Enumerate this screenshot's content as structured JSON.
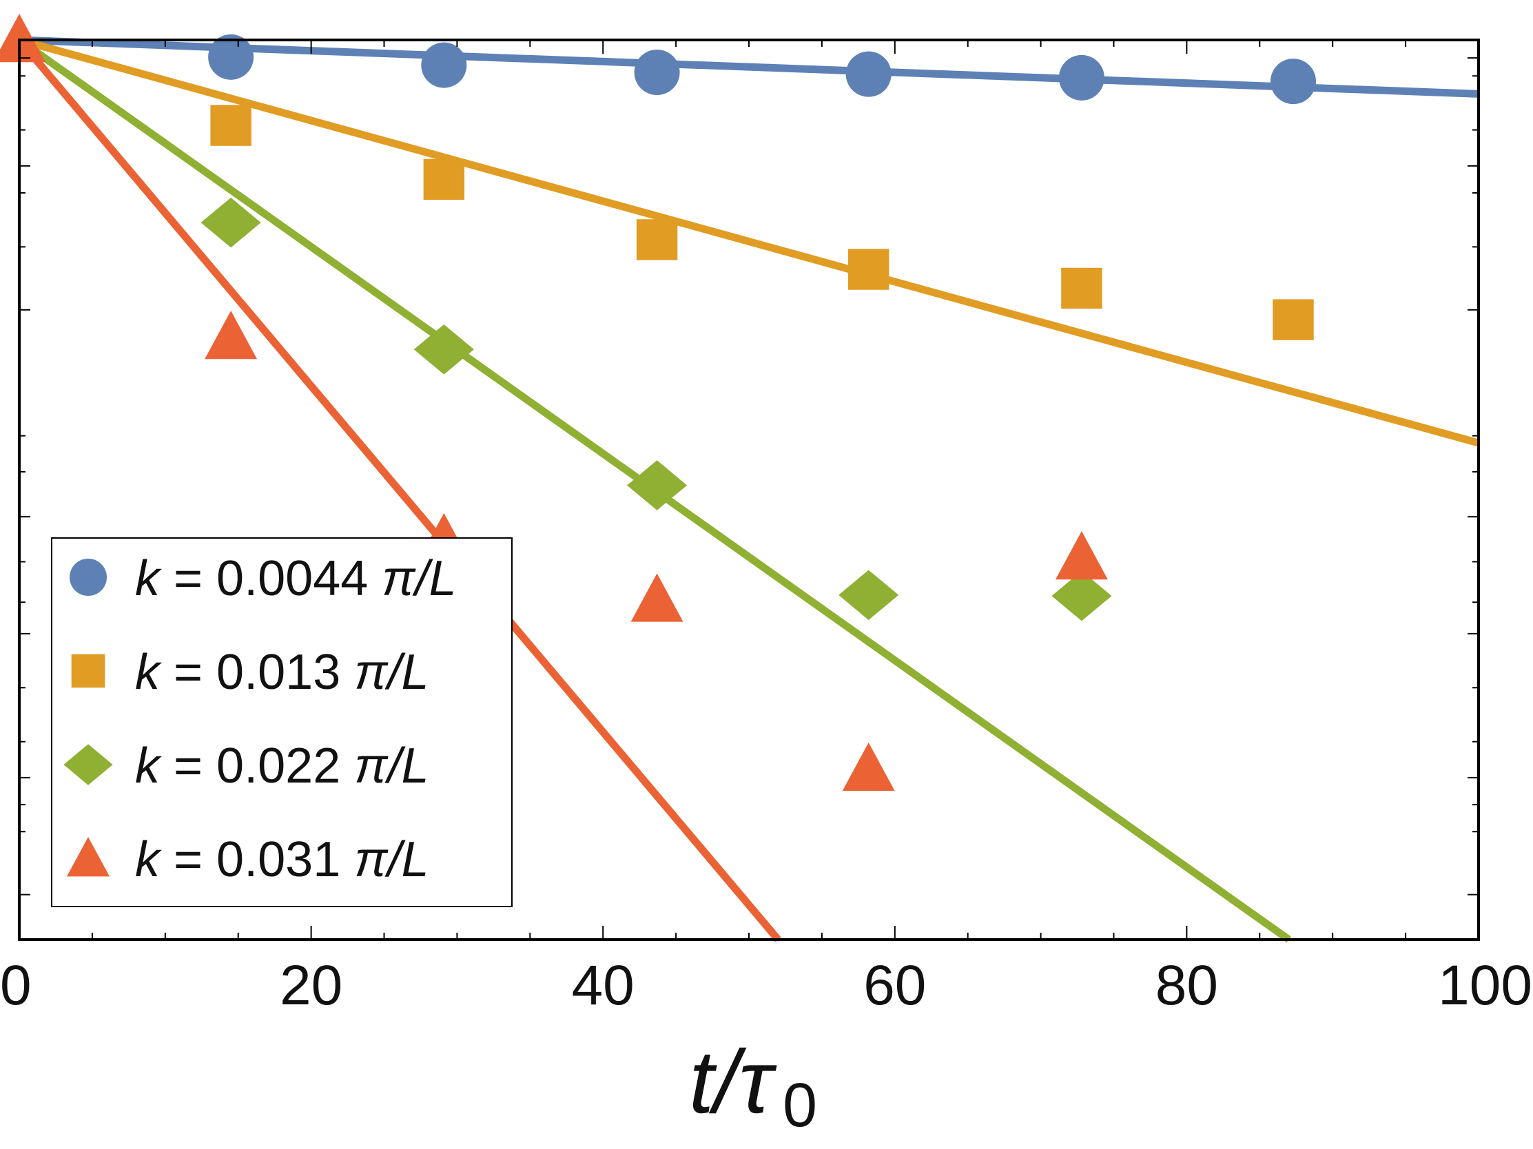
{
  "chart_data": {
    "type": "scatter",
    "title": "",
    "xlabel": "t/τ",
    "xlabel_subscript": "0",
    "ylabel": "",
    "xlim": [
      0,
      100
    ],
    "ylim": [
      0,
      1
    ],
    "y_scale": "log",
    "x_ticks": [
      "0",
      "20",
      "40",
      "60",
      "80",
      "100"
    ],
    "x_tick_values": [
      0,
      20,
      40,
      60,
      80,
      100
    ],
    "legend_position": "bottom-left",
    "series": [
      {
        "name": "k = 0.0044 π/L",
        "k_label": "k",
        "eq_label": "= 0.0044",
        "unit_label": "π/L",
        "marker": "circle",
        "color": "#5e81b5",
        "x": [
          14.5,
          29.1,
          43.7,
          58.2,
          72.8,
          87.3
        ],
        "y": [
          0.981,
          0.972,
          0.964,
          0.962,
          0.958,
          0.954
        ],
        "fit": {
          "x": [
            0,
            100
          ],
          "y": [
            1.0,
            0.94
          ]
        }
      },
      {
        "name": "k = 0.013 π/L",
        "k_label": "k",
        "eq_label": "= 0.013",
        "unit_label": "π/L",
        "marker": "square",
        "color": "#e19c24",
        "x": [
          14.5,
          29.1,
          43.7,
          58.2,
          72.8,
          87.3
        ],
        "y": [
          0.905,
          0.845,
          0.778,
          0.745,
          0.724,
          0.689
        ],
        "fit": {
          "x": [
            0,
            100
          ],
          "y": [
            1.0,
            0.552
          ]
        }
      },
      {
        "name": "k = 0.022 π/L",
        "k_label": "k",
        "eq_label": "= 0.022",
        "unit_label": "π/L",
        "marker": "diamond",
        "color": "#8fb032",
        "x": [
          14.5,
          29.1,
          43.7,
          58.2,
          72.8
        ],
        "y": [
          0.797,
          0.656,
          0.505,
          0.383,
          0.382
        ],
        "fit": {
          "x": [
            0,
            87
          ],
          "y": [
            1.0,
            0.0
          ]
        }
      },
      {
        "name": "k = 0.031 π/L",
        "k_label": "k",
        "eq_label": "= 0.031",
        "unit_label": "π/L",
        "marker": "triangle",
        "color": "#eb6235",
        "x": [
          0,
          14.5,
          29.1,
          43.7,
          58.2,
          72.8
        ],
        "y": [
          1.0,
          0.67,
          0.445,
          0.378,
          0.19,
          0.425
        ],
        "fit": {
          "x": [
            0,
            52
          ],
          "y": [
            1.0,
            0.0
          ]
        }
      }
    ]
  }
}
